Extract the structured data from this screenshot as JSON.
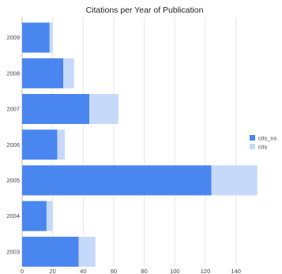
{
  "chart_data": {
    "type": "bar",
    "orientation": "horizontal",
    "stacked": true,
    "title": "Citations per Year of Publication",
    "xlabel": "",
    "ylabel": "",
    "categories": [
      "2003",
      "2004",
      "2005",
      "2006",
      "2007",
      "2008",
      "2009"
    ],
    "series": [
      {
        "name": "cits_ns",
        "color": "#4a86f0",
        "values": [
          37,
          16,
          124,
          23,
          44,
          27,
          18
        ]
      },
      {
        "name": "cits",
        "color": "#c6d9fb",
        "values": [
          11,
          4,
          30,
          5,
          19,
          7,
          2
        ]
      }
    ],
    "xlim": [
      0,
      150
    ],
    "xticks": [
      0,
      20,
      40,
      60,
      80,
      100,
      120,
      140
    ],
    "grid": "vertical",
    "legend_position": "right"
  }
}
